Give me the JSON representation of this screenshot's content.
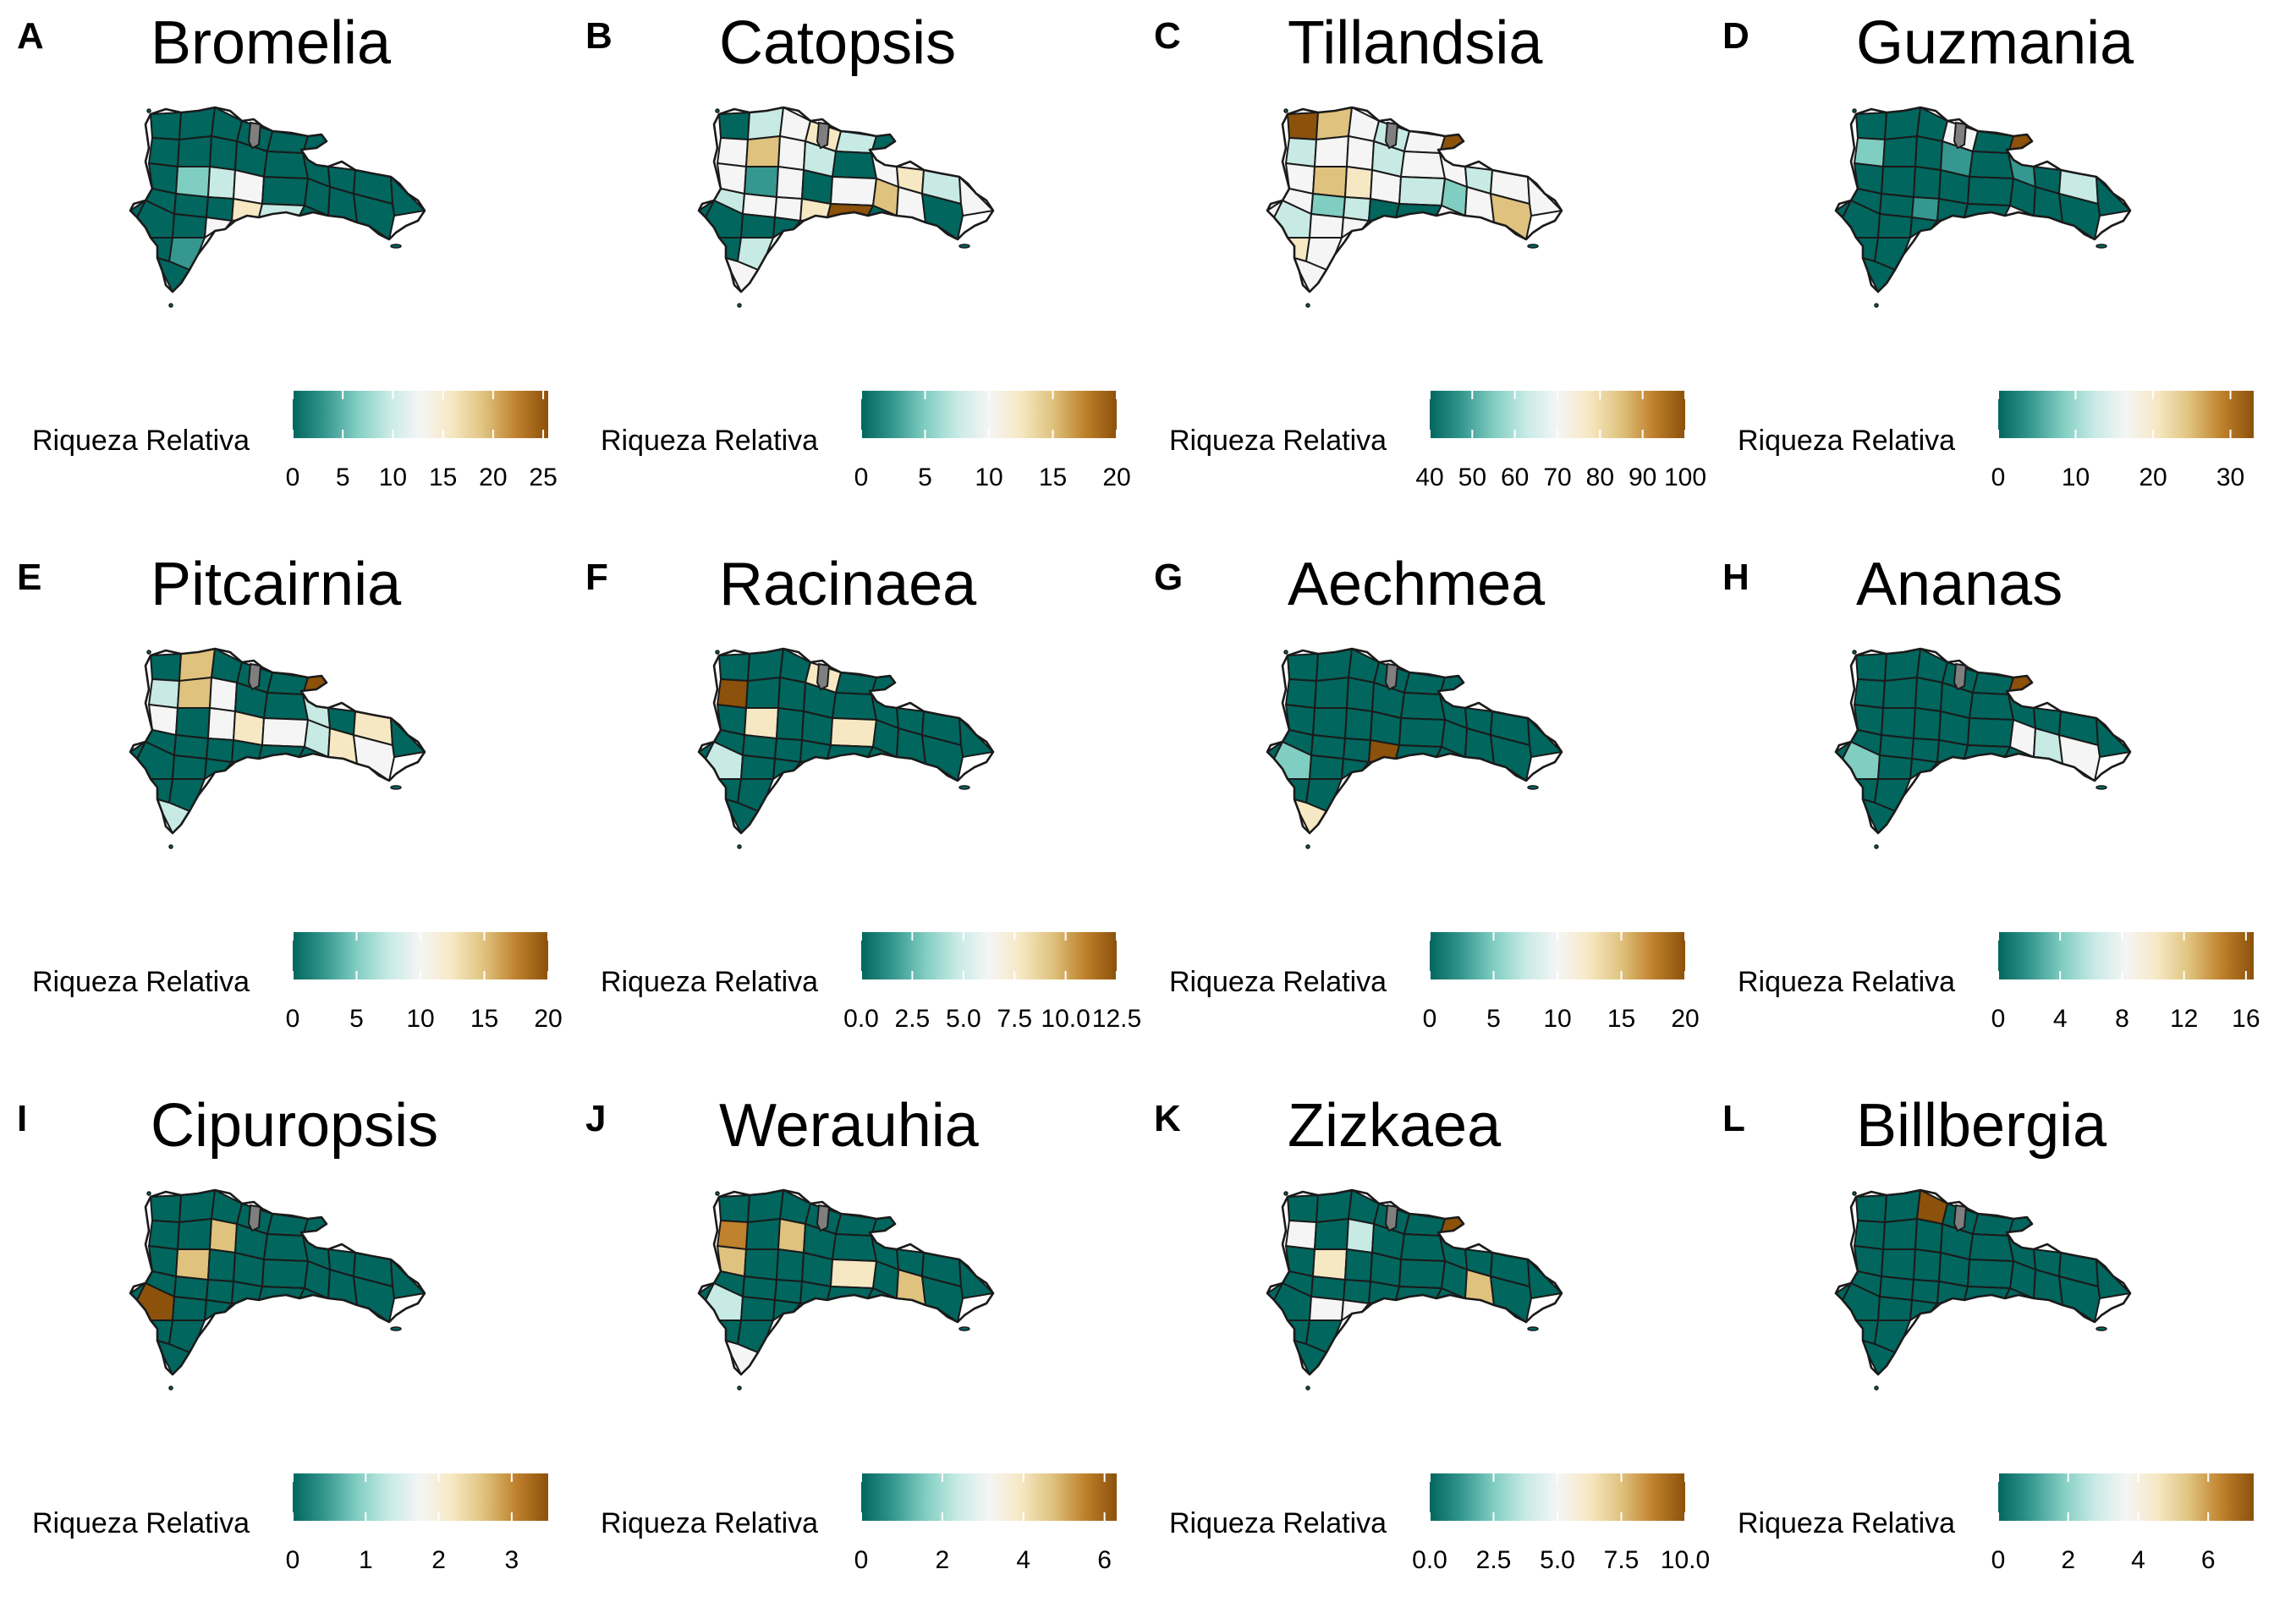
{
  "legend_title": "Riqueza Relativa",
  "map_fill_legend": "0 = #05665e … mid = #f5f5f5 … max = #8c510a; #808080 = sin dato",
  "palette": [
    "#01665e",
    "#35978f",
    "#80cdc1",
    "#c7eae5",
    "#f5f5f5",
    "#f6e8c3",
    "#dfc27d",
    "#bf812d",
    "#8c510a"
  ],
  "nodata_color": "#7f7f7f",
  "panels": [
    {
      "letter": "A",
      "title": "Bromelia",
      "scale_max": 25.5,
      "ticks": [
        {
          "value": 0,
          "label": "0"
        },
        {
          "value": 5,
          "label": "5"
        },
        {
          "value": 10,
          "label": "10"
        },
        {
          "value": 15,
          "label": "15"
        },
        {
          "value": 20,
          "label": "20"
        },
        {
          "value": 25,
          "label": "25"
        }
      ],
      "regions": [
        0,
        0,
        0,
        0,
        0,
        0,
        0,
        0,
        0,
        0,
        0,
        0,
        0,
        0,
        2,
        3,
        4,
        0,
        0,
        0,
        0,
        0,
        0,
        0,
        0,
        0,
        5,
        0,
        0,
        4,
        3,
        0,
        0,
        1,
        0,
        0
      ]
    },
    {
      "letter": "B",
      "title": "Catopsis",
      "scale_max": 20,
      "ticks": [
        {
          "value": 0,
          "label": "0"
        },
        {
          "value": 5,
          "label": "5"
        },
        {
          "value": 10,
          "label": "10"
        },
        {
          "value": 15,
          "label": "15"
        },
        {
          "value": 20,
          "label": "20"
        }
      ],
      "regions": [
        0,
        3,
        4,
        5,
        3,
        4,
        6,
        4,
        3,
        0,
        4,
        0,
        5,
        4,
        1,
        4,
        0,
        4,
        6,
        4,
        3,
        4,
        0,
        3,
        4,
        4,
        5,
        0,
        0,
        0,
        9,
        0,
        0,
        3,
        4,
        0
      ]
    },
    {
      "letter": "C",
      "title": "Tillandsia",
      "scale_max": 100,
      "ticks": [
        {
          "value": 40,
          "label": "40"
        },
        {
          "value": 50,
          "label": "50"
        },
        {
          "value": 60,
          "label": "60"
        },
        {
          "value": 70,
          "label": "70"
        },
        {
          "value": 80,
          "label": "80"
        },
        {
          "value": 90,
          "label": "90"
        },
        {
          "value": 100,
          "label": "100"
        }
      ],
      "scale_min": 40,
      "regions": [
        9,
        6,
        4,
        3,
        4,
        3,
        4,
        4,
        3,
        4,
        4,
        9,
        3,
        4,
        6,
        5,
        4,
        3,
        2,
        4,
        4,
        4,
        6,
        4,
        2,
        3,
        0,
        3,
        4,
        4,
        0,
        4,
        5,
        4,
        4,
        4
      ]
    },
    {
      "letter": "D",
      "title": "Guzmania",
      "scale_max": 33,
      "ticks": [
        {
          "value": 0,
          "label": "0"
        },
        {
          "value": 10,
          "label": "10"
        },
        {
          "value": 20,
          "label": "20"
        },
        {
          "value": 30,
          "label": "30"
        }
      ],
      "regions": [
        0,
        0,
        0,
        4,
        0,
        2,
        0,
        0,
        1,
        0,
        1,
        9,
        0,
        0,
        0,
        0,
        0,
        0,
        0,
        0,
        3,
        0,
        0,
        0,
        0,
        1,
        0,
        0,
        0,
        0,
        0,
        4,
        0,
        0,
        0,
        0
      ]
    },
    {
      "letter": "E",
      "title": "Pitcairnia",
      "scale_max": 20,
      "ticks": [
        {
          "value": 0,
          "label": "0"
        },
        {
          "value": 5,
          "label": "5"
        },
        {
          "value": 10,
          "label": "10"
        },
        {
          "value": 15,
          "label": "15"
        },
        {
          "value": 20,
          "label": "20"
        }
      ],
      "regions": [
        0,
        6,
        0,
        0,
        0,
        3,
        6,
        4,
        0,
        0,
        3,
        9,
        0,
        4,
        0,
        4,
        5,
        4,
        3,
        5,
        5,
        0,
        4,
        0,
        0,
        0,
        0,
        0,
        0,
        0,
        0,
        0,
        0,
        0,
        3,
        0
      ]
    },
    {
      "letter": "F",
      "title": "Racinaea",
      "scale_max": 12.5,
      "ticks": [
        {
          "value": 0,
          "label": "0.0"
        },
        {
          "value": 2.5,
          "label": "2.5"
        },
        {
          "value": 5,
          "label": "5.0"
        },
        {
          "value": 7.5,
          "label": "7.5"
        },
        {
          "value": 10,
          "label": "10.0"
        },
        {
          "value": 12.5,
          "label": "12.5"
        }
      ],
      "regions": [
        0,
        0,
        0,
        5,
        0,
        9,
        0,
        0,
        0,
        0,
        0,
        0,
        0,
        0,
        5,
        0,
        0,
        5,
        0,
        0,
        0,
        0,
        0,
        0,
        0,
        0,
        0,
        3,
        0,
        0,
        0,
        0,
        0,
        0,
        0,
        0
      ]
    },
    {
      "letter": "G",
      "title": "Aechmea",
      "scale_max": 20,
      "ticks": [
        {
          "value": 0,
          "label": "0"
        },
        {
          "value": 5,
          "label": "5"
        },
        {
          "value": 10,
          "label": "10"
        },
        {
          "value": 15,
          "label": "15"
        },
        {
          "value": 20,
          "label": "20"
        }
      ],
      "regions": [
        0,
        0,
        0,
        0,
        0,
        0,
        0,
        0,
        0,
        0,
        0,
        0,
        0,
        0,
        0,
        0,
        0,
        0,
        0,
        0,
        0,
        0,
        0,
        0,
        0,
        0,
        9,
        2,
        0,
        0,
        0,
        0,
        0,
        0,
        5,
        0
      ]
    },
    {
      "letter": "H",
      "title": "Ananas",
      "scale_max": 16.5,
      "ticks": [
        {
          "value": 0,
          "label": "0"
        },
        {
          "value": 4,
          "label": "4"
        },
        {
          "value": 8,
          "label": "8"
        },
        {
          "value": 12,
          "label": "12"
        },
        {
          "value": 16,
          "label": "16"
        }
      ],
      "regions": [
        0,
        0,
        0,
        0,
        0,
        0,
        0,
        0,
        0,
        0,
        0,
        9,
        0,
        0,
        0,
        0,
        0,
        0,
        4,
        3,
        0,
        0,
        4,
        0,
        0,
        0,
        0,
        2,
        0,
        0,
        0,
        0,
        0,
        0,
        0,
        0
      ]
    },
    {
      "letter": "I",
      "title": "Cipuropsis",
      "scale_max": 3.5,
      "ticks": [
        {
          "value": 0,
          "label": "0"
        },
        {
          "value": 1,
          "label": "1"
        },
        {
          "value": 2,
          "label": "2"
        },
        {
          "value": 3,
          "label": "3"
        }
      ],
      "regions": [
        0,
        0,
        0,
        0,
        0,
        0,
        0,
        6,
        0,
        0,
        0,
        0,
        0,
        0,
        6,
        0,
        0,
        0,
        0,
        0,
        0,
        0,
        0,
        0,
        0,
        0,
        0,
        9,
        0,
        0,
        0,
        0,
        0,
        0,
        0,
        0
      ]
    },
    {
      "letter": "J",
      "title": "Werauhia",
      "scale_max": 6.3,
      "ticks": [
        {
          "value": 0,
          "label": "0"
        },
        {
          "value": 2,
          "label": "2"
        },
        {
          "value": 4,
          "label": "4"
        },
        {
          "value": 6,
          "label": "6"
        }
      ],
      "regions": [
        0,
        0,
        0,
        0,
        0,
        7,
        0,
        6,
        0,
        0,
        0,
        0,
        0,
        6,
        0,
        0,
        0,
        5,
        0,
        6,
        0,
        0,
        0,
        0,
        0,
        0,
        0,
        3,
        0,
        0,
        0,
        0,
        0,
        0,
        4,
        0
      ]
    },
    {
      "letter": "K",
      "title": "Zizkaea",
      "scale_max": 10,
      "ticks": [
        {
          "value": 0,
          "label": "0.0"
        },
        {
          "value": 2.5,
          "label": "2.5"
        },
        {
          "value": 5,
          "label": "5.0"
        },
        {
          "value": 7.5,
          "label": "7.5"
        },
        {
          "value": 10,
          "label": "10.0"
        }
      ],
      "regions": [
        0,
        0,
        0,
        0,
        0,
        4,
        0,
        3,
        0,
        0,
        0,
        9,
        0,
        0,
        5,
        0,
        0,
        0,
        0,
        6,
        0,
        0,
        0,
        0,
        0,
        0,
        0,
        0,
        4,
        4,
        0,
        0,
        0,
        0,
        0,
        0
      ]
    },
    {
      "letter": "L",
      "title": "Billbergia",
      "scale_max": 7.3,
      "ticks": [
        {
          "value": 0,
          "label": "0"
        },
        {
          "value": 2,
          "label": "2"
        },
        {
          "value": 4,
          "label": "4"
        },
        {
          "value": 6,
          "label": "6"
        }
      ],
      "regions": [
        0,
        0,
        9,
        0,
        0,
        0,
        0,
        0,
        0,
        0,
        0,
        0,
        0,
        0,
        0,
        0,
        0,
        0,
        0,
        0,
        0,
        0,
        0,
        0,
        0,
        0,
        0,
        0,
        0,
        0,
        0,
        0,
        0,
        0,
        0,
        0
      ]
    }
  ]
}
